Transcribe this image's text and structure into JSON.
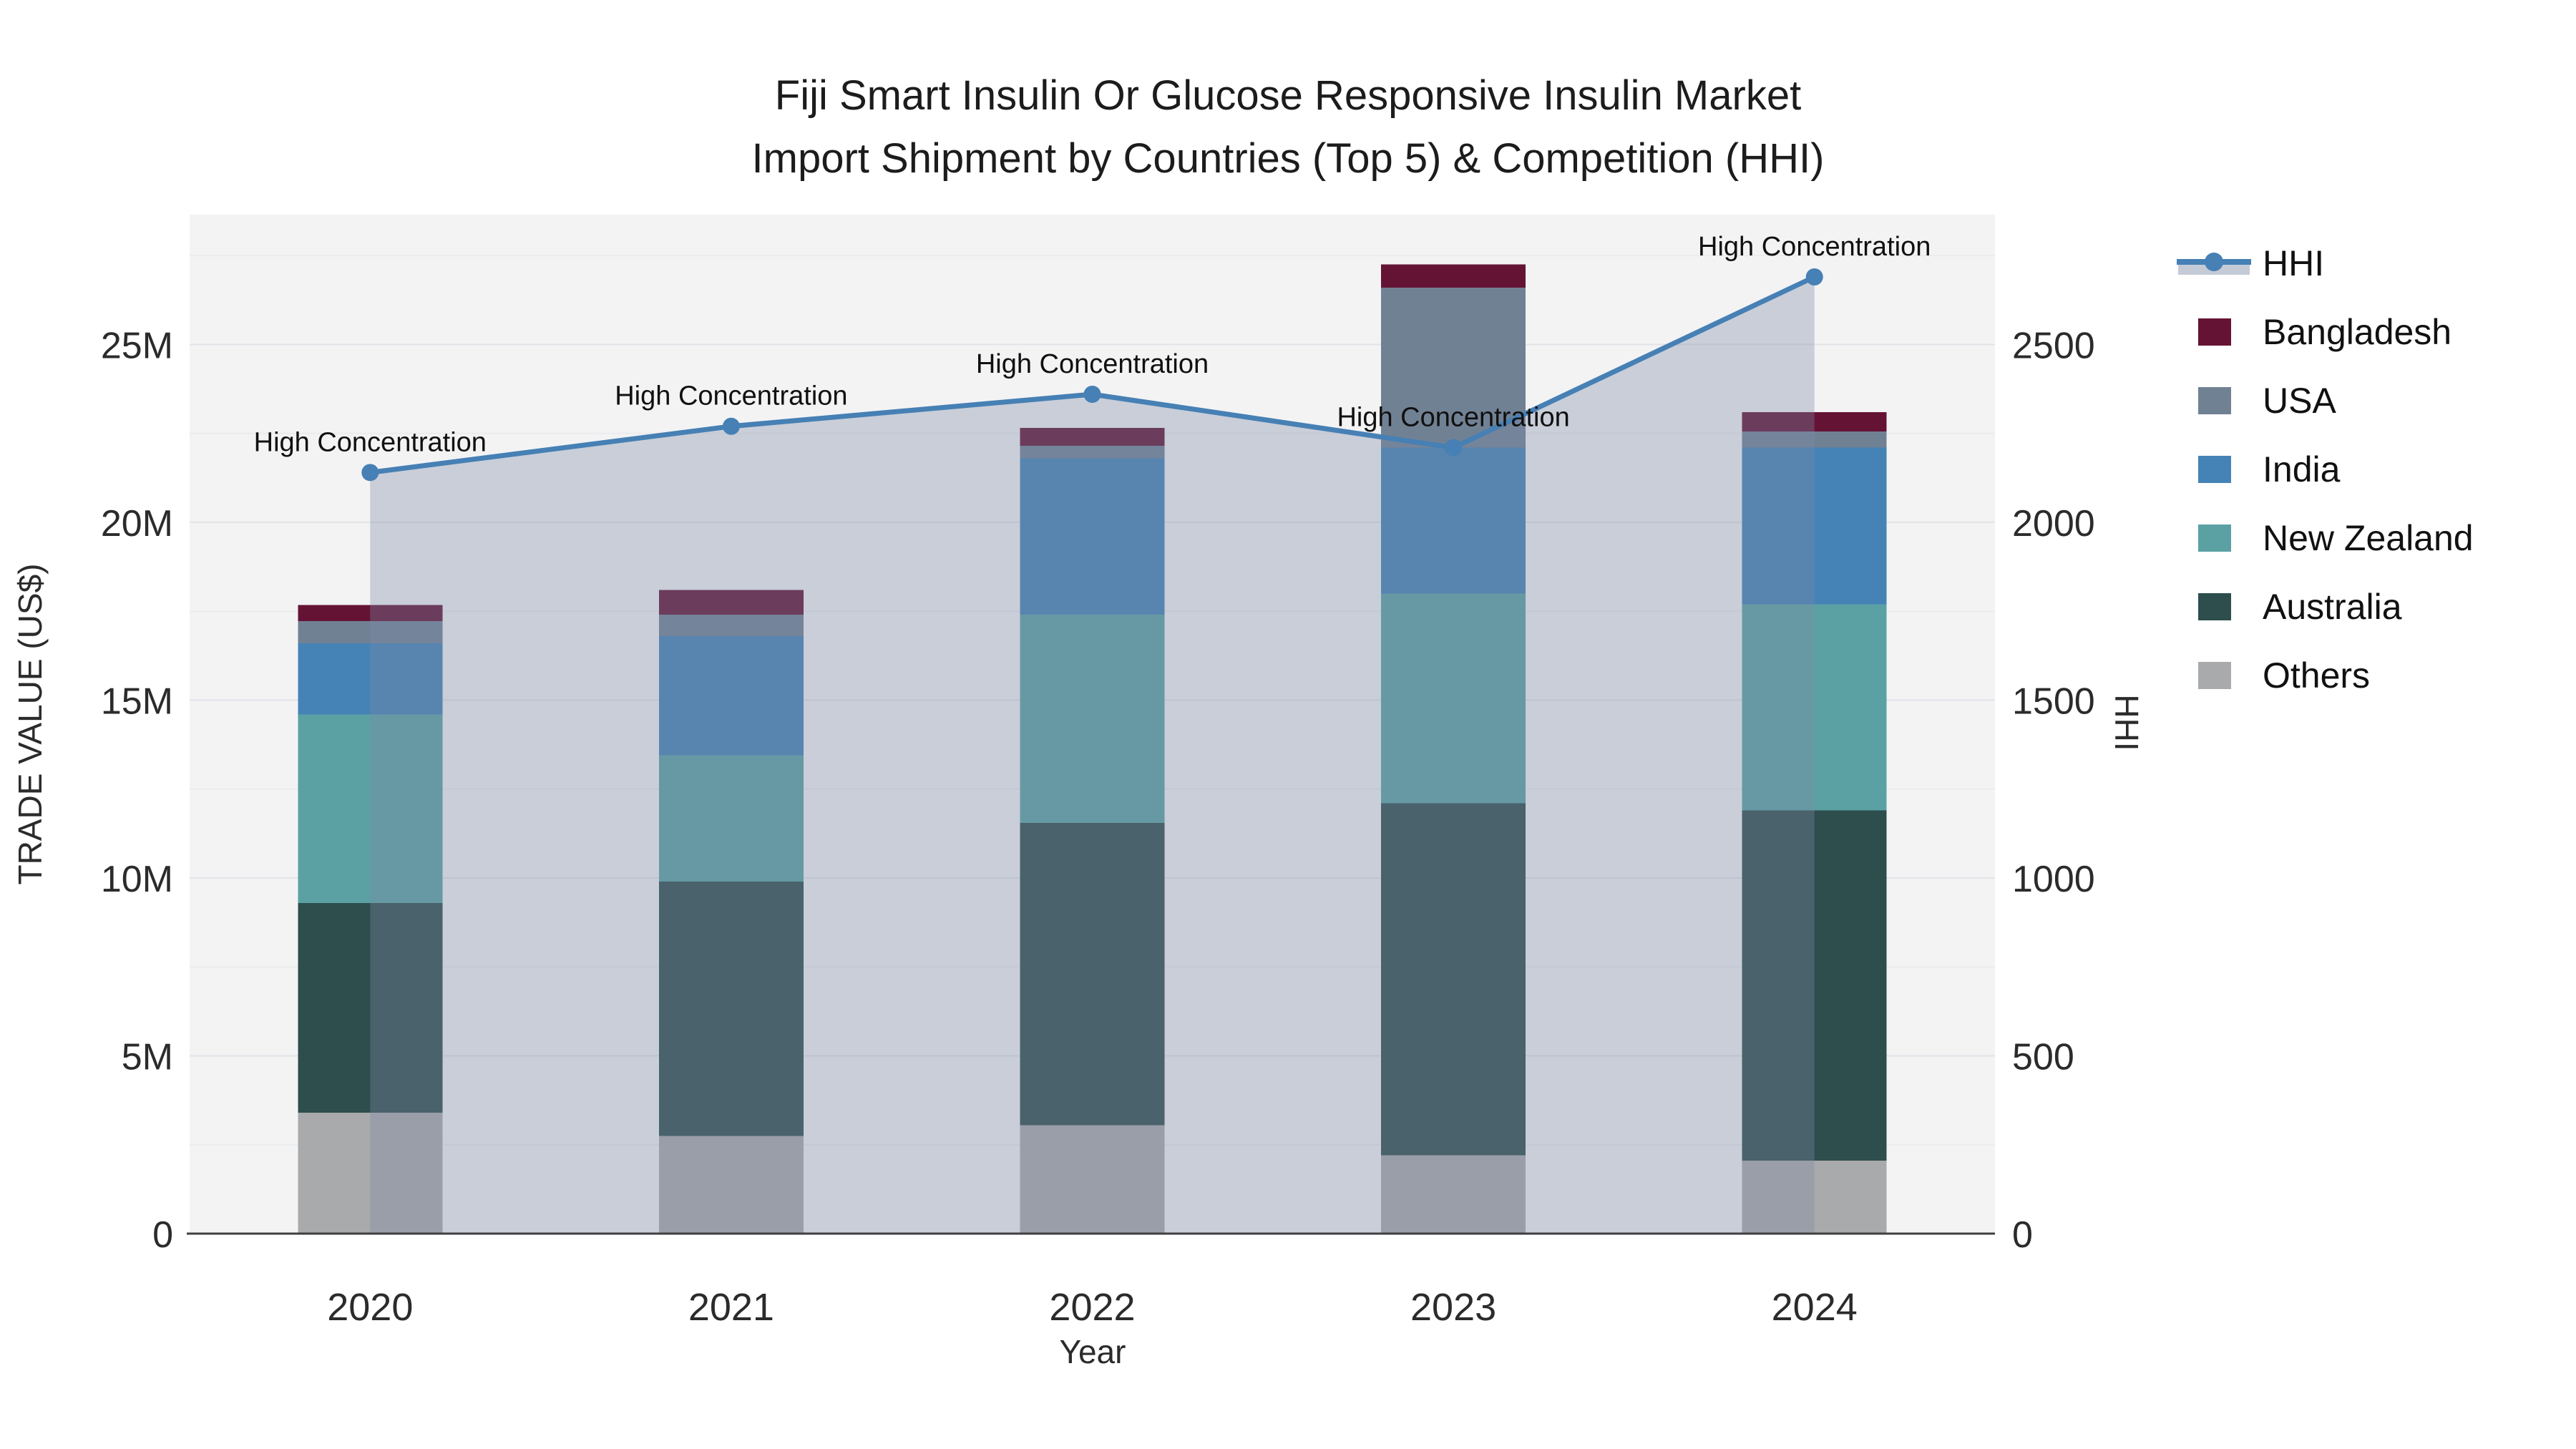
{
  "title": {
    "line1": "Fiji Smart Insulin Or Glucose Responsive Insulin Market",
    "line2": "Import Shipment by Countries (Top 5) & Competition (HHI)"
  },
  "axes": {
    "x": {
      "title": "Year",
      "tick_labels": [
        "2020",
        "2021",
        "2022",
        "2023",
        "2024"
      ]
    },
    "y_left": {
      "title": "TRADE VALUE (US$)",
      "tick_labels": [
        "0",
        "5M",
        "10M",
        "15M",
        "20M",
        "25M"
      ],
      "tick_values_usd": [
        0,
        5000000,
        10000000,
        15000000,
        20000000,
        25000000
      ],
      "axis_max_usd": 28650000
    },
    "y_right": {
      "title": "HHI",
      "tick_labels": [
        "0",
        "500",
        "1000",
        "1500",
        "2000",
        "2500"
      ],
      "tick_values": [
        0,
        500,
        1000,
        1500,
        2000,
        2500
      ],
      "axis_max": 2865
    }
  },
  "legend": [
    {
      "id": "hhi",
      "label": "HHI",
      "type": "line",
      "color": "#4680b4"
    },
    {
      "id": "bangladesh",
      "label": "Bangladesh",
      "type": "swatch",
      "color": "#651335"
    },
    {
      "id": "usa",
      "label": "USA",
      "type": "swatch",
      "color": "#718194"
    },
    {
      "id": "india",
      "label": "India",
      "type": "swatch",
      "color": "#4583b6"
    },
    {
      "id": "new-zealand",
      "label": "New Zealand",
      "type": "swatch",
      "color": "#5ba1a4"
    },
    {
      "id": "australia",
      "label": "Australia",
      "type": "swatch",
      "color": "#2e4d4d"
    },
    {
      "id": "others",
      "label": "Others",
      "type": "swatch",
      "color": "#a9aaab"
    }
  ],
  "chart_data": {
    "type": "bar",
    "subtype": "stacked-bars-with-line",
    "categories": [
      "2020",
      "2021",
      "2022",
      "2023",
      "2024"
    ],
    "bar_unit": "US$ millions",
    "series": [
      {
        "name": "Others",
        "color": "#a9aaab",
        "values": [
          3.4,
          2.75,
          3.05,
          2.2,
          2.05
        ]
      },
      {
        "name": "Australia",
        "color": "#2e4d4d",
        "values": [
          5.9,
          7.15,
          8.5,
          9.9,
          9.85
        ]
      },
      {
        "name": "New Zealand",
        "color": "#5ba1a4",
        "values": [
          5.3,
          3.55,
          5.85,
          5.9,
          5.8
        ]
      },
      {
        "name": "India",
        "color": "#4583b6",
        "values": [
          2.0,
          3.35,
          4.4,
          4.1,
          4.4
        ]
      },
      {
        "name": "USA",
        "color": "#718194",
        "values": [
          0.62,
          0.6,
          0.35,
          4.5,
          0.45
        ]
      },
      {
        "name": "Bangladesh",
        "color": "#651335",
        "values": [
          0.45,
          0.7,
          0.5,
          0.65,
          0.55
        ]
      }
    ],
    "bar_totals": [
      17.67,
      18.1,
      22.65,
      27.25,
      23.1
    ],
    "line_series": {
      "name": "HHI",
      "color": "#4680b4",
      "area_fill_color": "rgba(124,138,165,0.35)",
      "values": [
        2140,
        2270,
        2360,
        2210,
        2690
      ],
      "point_annotations": [
        "High Concentration",
        "High Concentration",
        "High Concentration",
        "High Concentration",
        "High Concentration"
      ]
    },
    "title": "Fiji Smart Insulin Or Glucose Responsive Insulin Market Import Shipment by Countries (Top 5) & Competition (HHI)",
    "xlabel": "Year",
    "ylabel": "TRADE VALUE (US$)",
    "ylabel_right": "HHI",
    "ylim_left_usd": [
      0,
      28650000
    ],
    "ylim_right": [
      0,
      2865
    ],
    "grid": true,
    "legend_position": "right"
  },
  "colors": {
    "plot_bg": "#f3f3f4",
    "grid_major": "#e2e3e7",
    "grid_minor": "#ebecee",
    "axis_line": "#3f3f3f",
    "tick_label": "#2b2b2b",
    "annotation_text": "#101010"
  }
}
